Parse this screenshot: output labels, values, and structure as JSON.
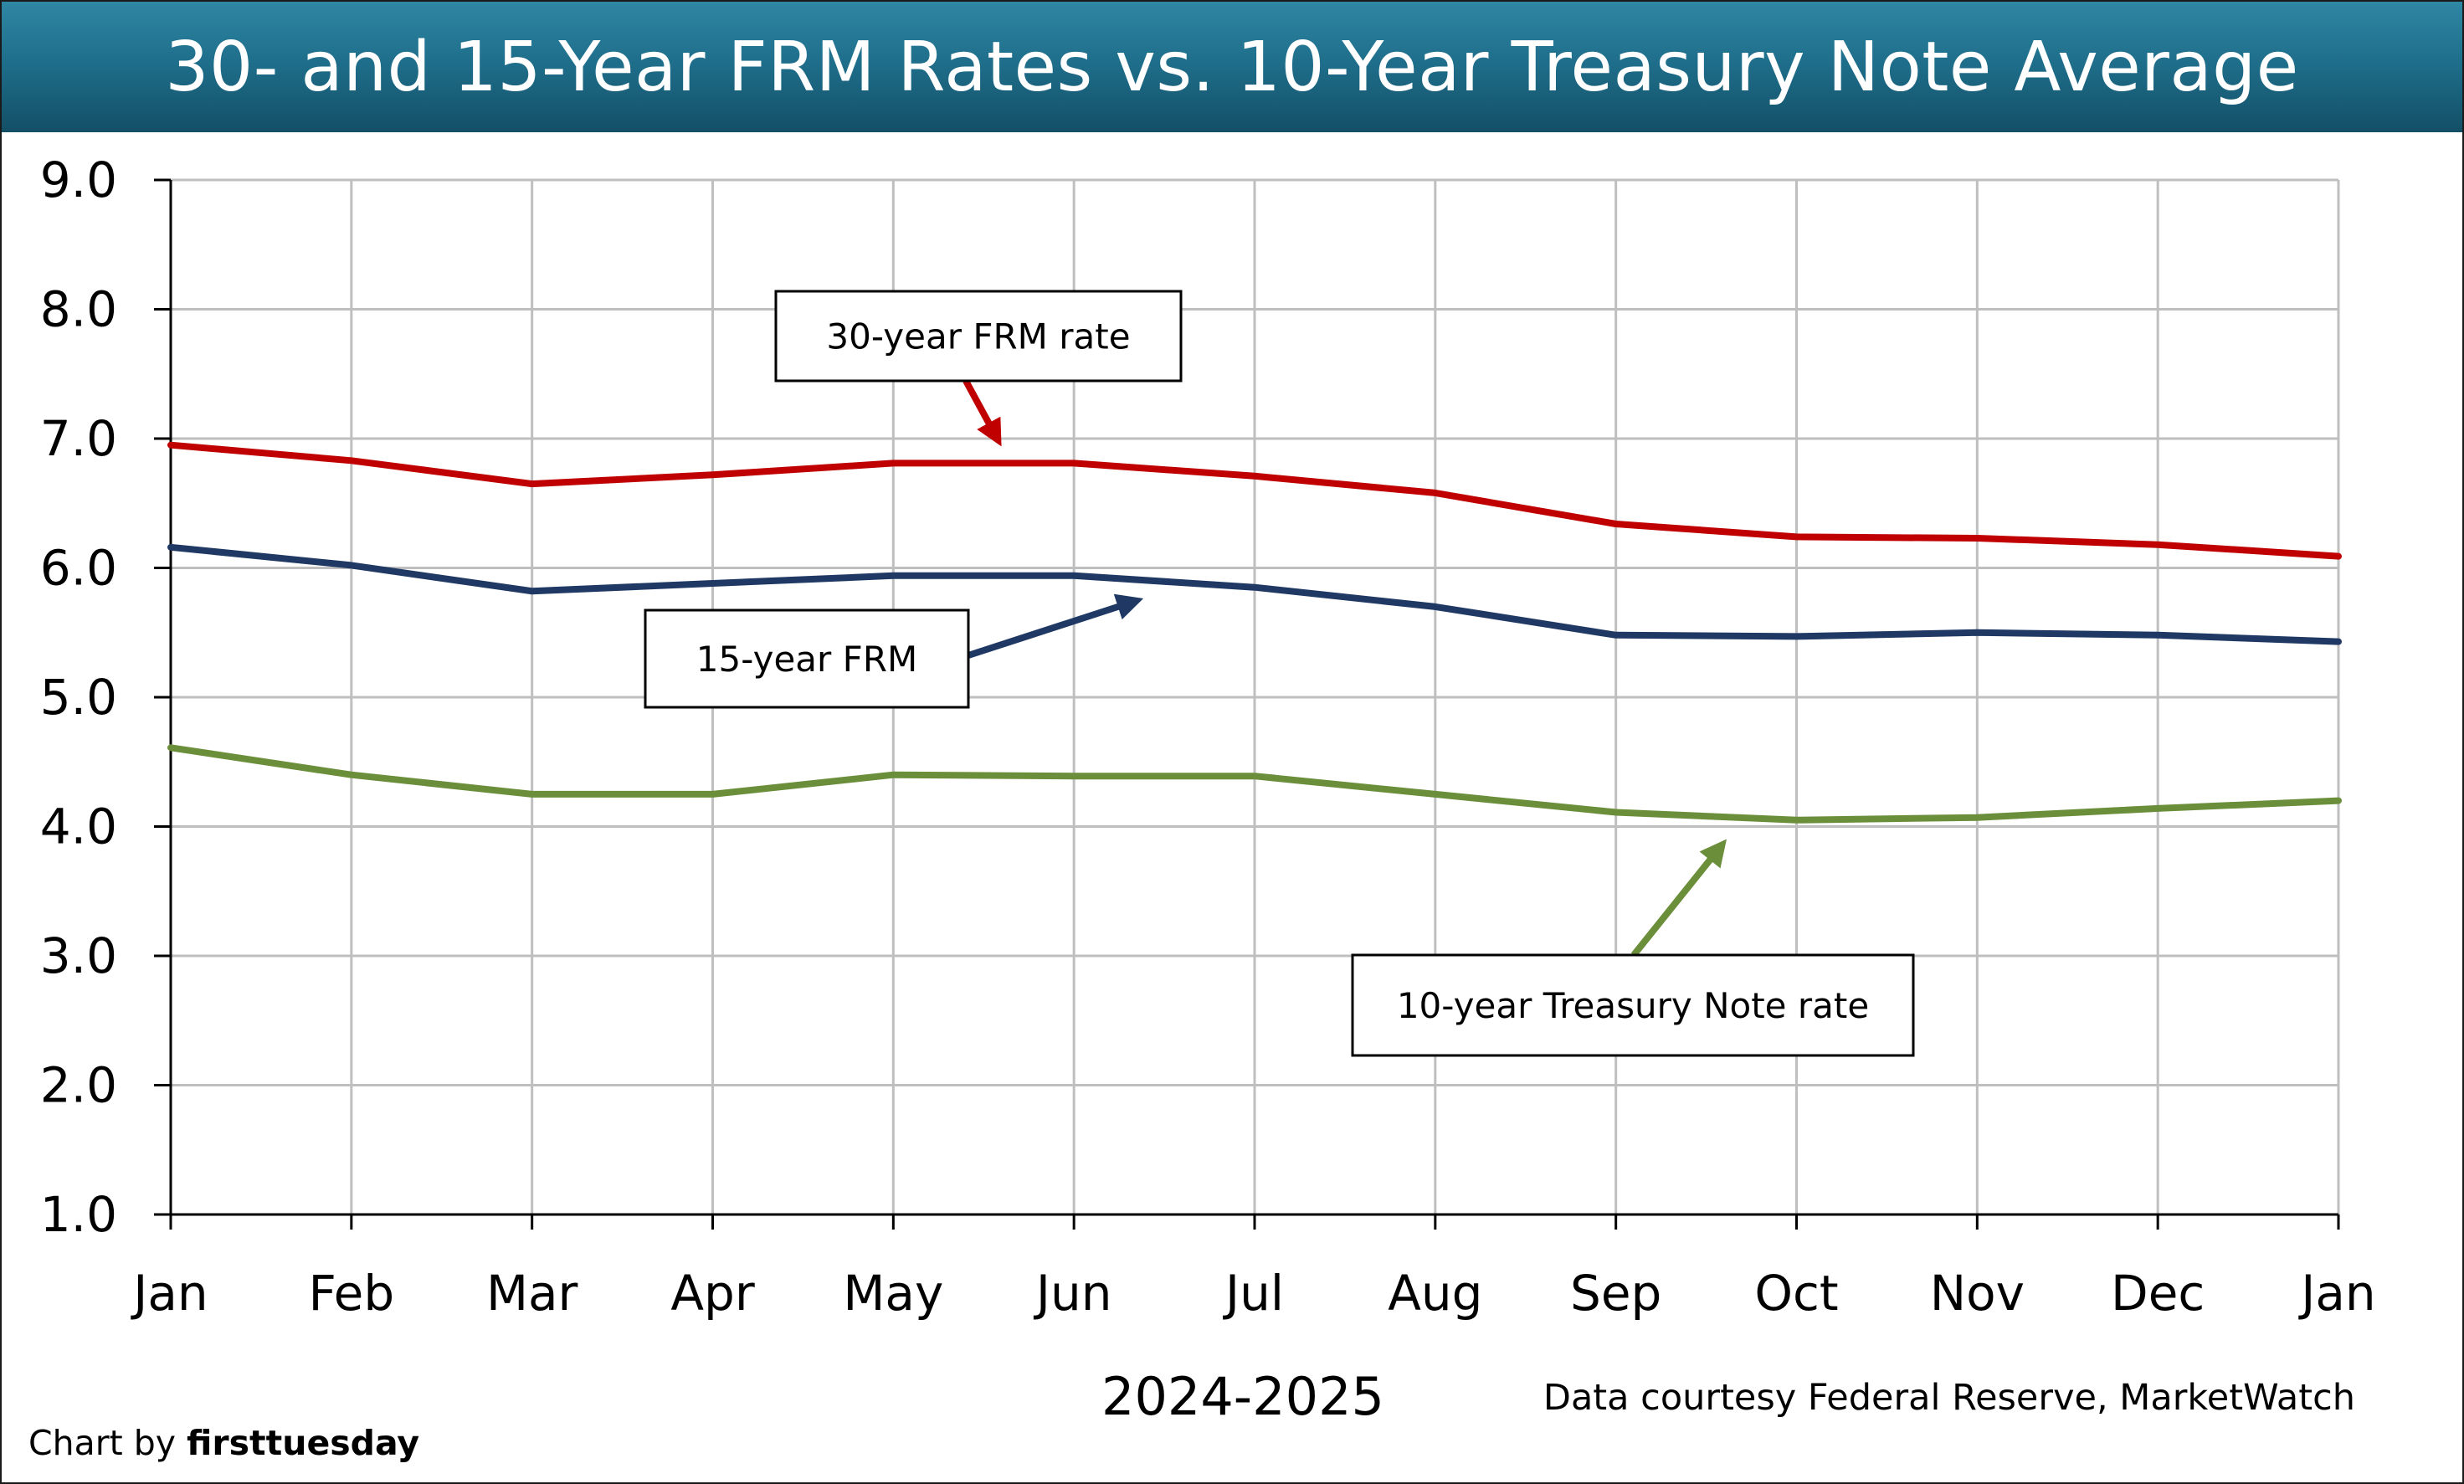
{
  "title": "30- and 15-Year FRM Rates vs. 10-Year Treasury Note Average",
  "source_note": "Data courtesy Federal Reserve, MarketWatch",
  "credit": {
    "prefix": "Chart by",
    "brand": "firsttuesday"
  },
  "colors": {
    "frm30": "#c00000",
    "frm15": "#1f3864",
    "treasury10": "#6b8e3a",
    "grid": "#bfbfbf",
    "title_bar": "#1f6f8c"
  },
  "annotations": [
    {
      "text": "30-year FRM rate",
      "series": "frm30"
    },
    {
      "text": "15-year FRM",
      "series": "frm15"
    },
    {
      "text": "10-year Treasury Note rate",
      "series": "treasury10"
    }
  ],
  "chart_data": {
    "type": "line",
    "title": "30- and 15-Year FRM Rates vs. 10-Year Treasury Note Average",
    "xlabel": "2024-2025",
    "ylabel": "",
    "categories": [
      "Jan",
      "Feb",
      "Mar",
      "Apr",
      "May",
      "Jun",
      "Jul",
      "Aug",
      "Sep",
      "Oct",
      "Nov",
      "Dec",
      "Jan"
    ],
    "ylim": [
      1.0,
      9.0
    ],
    "yticks": [
      "1.0",
      "2.0",
      "3.0",
      "4.0",
      "5.0",
      "6.0",
      "7.0",
      "8.0",
      "9.0"
    ],
    "grid": true,
    "legend": "none",
    "series": [
      {
        "name": "30-year FRM rate",
        "key": "frm30",
        "values": [
          6.95,
          6.83,
          6.65,
          6.72,
          6.81,
          6.81,
          6.71,
          6.58,
          6.34,
          6.24,
          6.23,
          6.18,
          6.09
        ]
      },
      {
        "name": "15-year FRM",
        "key": "frm15",
        "values": [
          6.16,
          6.02,
          5.82,
          5.88,
          5.94,
          5.94,
          5.85,
          5.7,
          5.48,
          5.47,
          5.5,
          5.48,
          5.43
        ]
      },
      {
        "name": "10-year Treasury Note rate",
        "key": "treasury10",
        "values": [
          4.61,
          4.4,
          4.25,
          4.25,
          4.4,
          4.39,
          4.39,
          4.25,
          4.11,
          4.05,
          4.07,
          4.14,
          4.2
        ]
      }
    ]
  }
}
